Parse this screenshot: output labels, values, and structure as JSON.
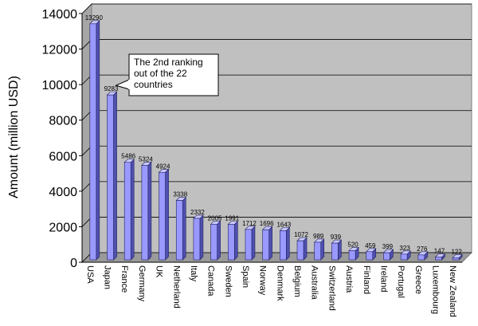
{
  "chart_data": {
    "type": "bar",
    "ylabel": "Amount (million USD)",
    "ylim": [
      0,
      14000
    ],
    "yticks": [
      "0",
      "2000",
      "4000",
      "6000",
      "8000",
      "10000",
      "12000",
      "14000"
    ],
    "grid": true,
    "legend": "none",
    "categories": [
      "USA",
      "Japan",
      "France",
      "Germany",
      "UK",
      "Netherland",
      "Italy",
      "Canada",
      "Sweden",
      "Spain",
      "Norway",
      "Denmark",
      "Belgium",
      "Australia",
      "Switzerland",
      "Austria",
      "Finland",
      "Ireland",
      "Portugal",
      "Greece",
      "Luxembourg",
      "New Zealand"
    ],
    "values": [
      13290,
      9283,
      5486,
      5324,
      4924,
      3338,
      2332,
      2005,
      1991,
      1712,
      1696,
      1643,
      1072,
      989,
      939,
      520,
      459,
      399,
      323,
      276,
      147,
      122
    ],
    "data_labels": [
      "13290",
      "9283",
      "5486",
      "5324",
      "4924",
      "3338",
      "2332",
      "2005",
      "1991",
      "1712",
      "1696",
      "1643",
      "1072",
      "989",
      "939",
      "520",
      "459",
      "399",
      "323",
      "276",
      "147",
      "122"
    ],
    "annotation": {
      "lines": [
        "The 2nd ranking",
        "out of the 22",
        "countries"
      ],
      "target_category": "Japan"
    },
    "colors": {
      "plot_back": "#c0c0c0",
      "plot_side": "#a6a6a6",
      "plot_floor": "#9a9a9a",
      "bar_front": "#9999ff",
      "bar_side": "#5050b0",
      "bar_top": "#c8c8ff",
      "gridline": "#000000"
    }
  }
}
